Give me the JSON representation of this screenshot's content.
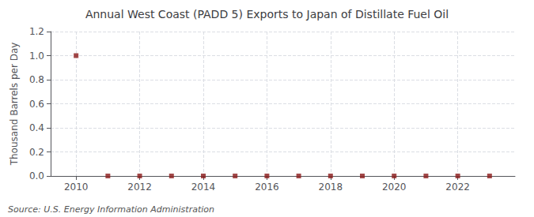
{
  "chart_data": {
    "type": "scatter",
    "title": "Annual West Coast (PADD 5) Exports to Japan of Distillate Fuel Oil",
    "ylabel": "Thousand Barrels per Day",
    "annotations": [
      "Source: U.S. Energy Information Administration"
    ],
    "x": [
      2010,
      2011,
      2012,
      2013,
      2014,
      2015,
      2016,
      2017,
      2018,
      2019,
      2020,
      2021,
      2022,
      2023
    ],
    "values": [
      1.0,
      0.0,
      0.0,
      0.0,
      0.0,
      0.0,
      0.0,
      0.0,
      0.0,
      0.0,
      0.0,
      0.0,
      0.0,
      0.0
    ],
    "color": "#8b1a1a",
    "marker": "square",
    "xlim": [
      2009.2,
      2023.8
    ],
    "xticks": [
      2010,
      2012,
      2014,
      2016,
      2018,
      2020,
      2022
    ],
    "ylim": [
      0.0,
      1.2
    ],
    "yticks": [
      {
        "value": 0.0,
        "label": "0.0"
      },
      {
        "value": 0.2,
        "label": "0.2"
      },
      {
        "value": 0.4,
        "label": "0.4"
      },
      {
        "value": 0.6,
        "label": "0.6"
      },
      {
        "value": 0.8,
        "label": "0.8"
      },
      {
        "value": 1.0,
        "label": "1.0"
      },
      {
        "value": 1.2,
        "label": "1.2"
      }
    ],
    "grid": true
  }
}
